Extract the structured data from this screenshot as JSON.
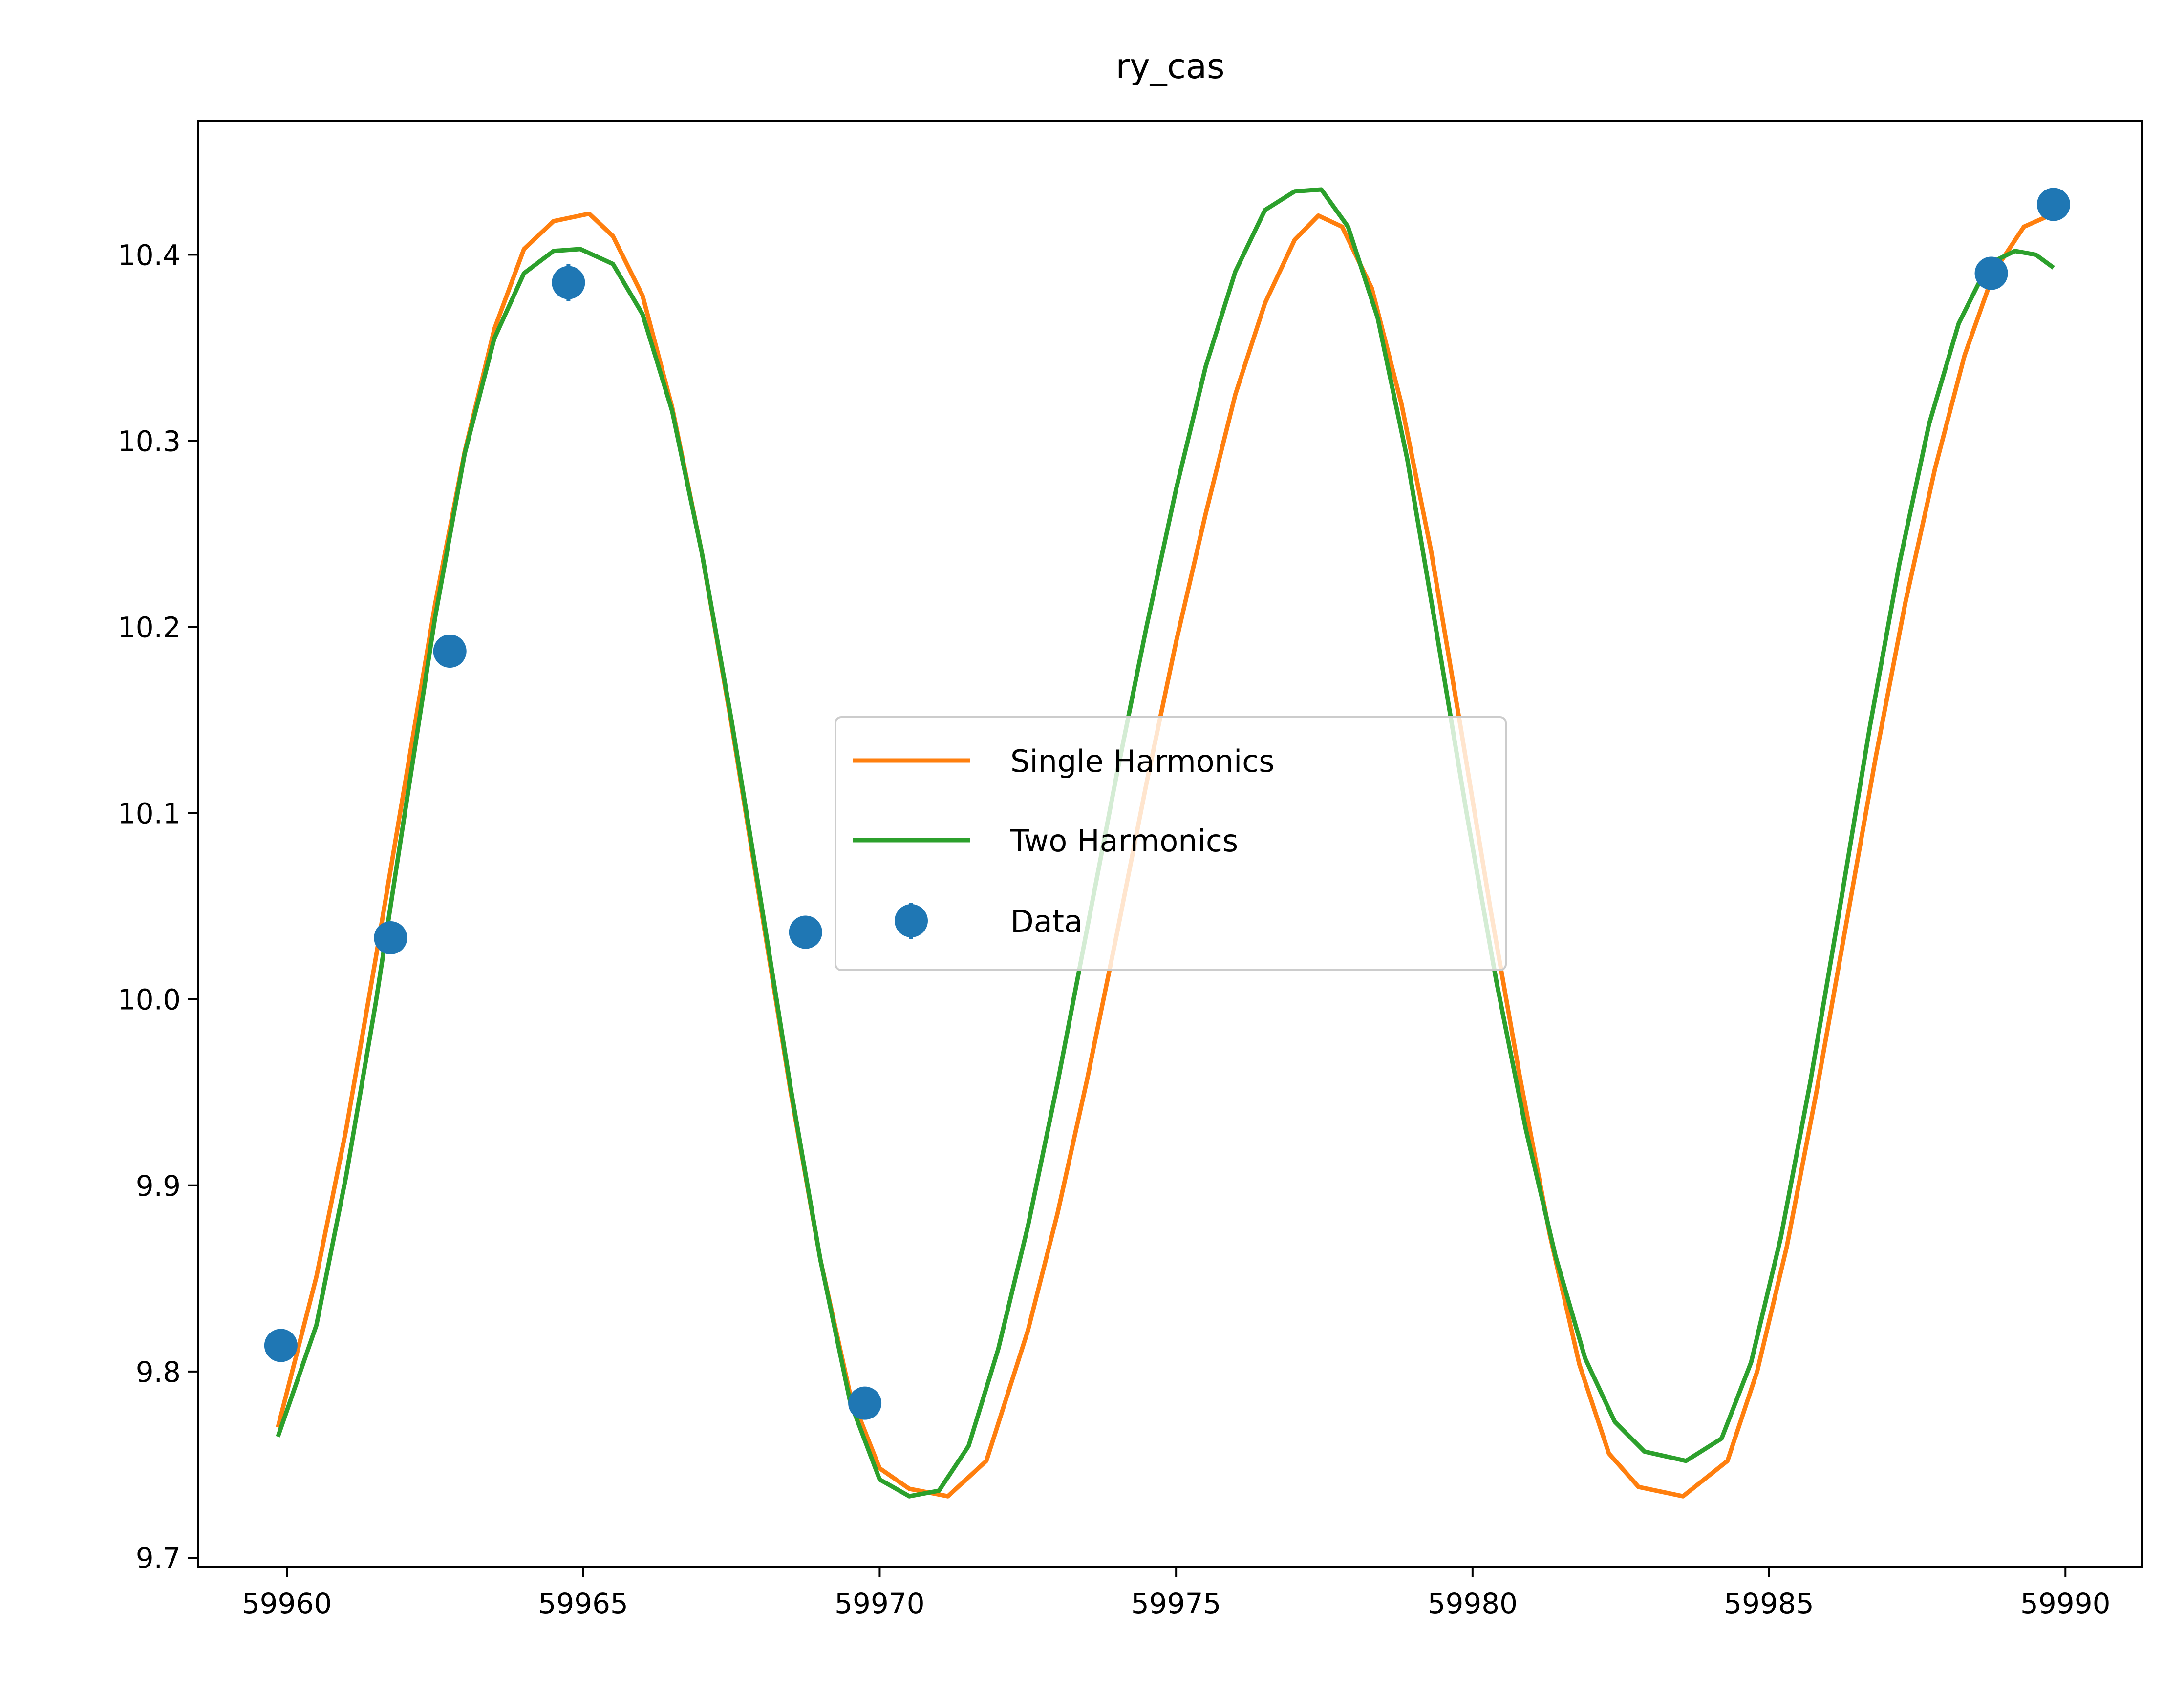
{
  "colors": {
    "single": "#ff7f0e",
    "two": "#2ca02c",
    "data": "#1f77b4"
  },
  "chart_data": {
    "type": "line",
    "title": "ry_cas",
    "xlabel": "",
    "ylabel": "",
    "xlim": [
      59958.5,
      59991.3
    ],
    "ylim": [
      9.695,
      10.472
    ],
    "xticks": [
      59960,
      59965,
      59970,
      59975,
      59980,
      59985,
      59990
    ],
    "yticks": [
      9.7,
      9.8,
      9.9,
      10.0,
      10.1,
      10.2,
      10.3,
      10.4
    ],
    "xtick_labels": [
      "59960",
      "59965",
      "59970",
      "59975",
      "59980",
      "59985",
      "59990"
    ],
    "ytick_labels": [
      "9.7",
      "9.8",
      "9.9",
      "10.0",
      "10.1",
      "10.2",
      "10.3",
      "10.4"
    ],
    "grid": false,
    "legend_position": "center",
    "series": [
      {
        "name": "Single Harmonics",
        "kind": "line",
        "color": "#ff7f0e",
        "x": [
          59959.85,
          59960.5,
          59961.0,
          59961.5,
          59962.0,
          59962.5,
          59963.0,
          59963.5,
          59964.0,
          59964.5,
          59965.1,
          59965.5,
          59966.0,
          59966.5,
          59967.0,
          59967.5,
          59968.0,
          59968.5,
          59969.0,
          59969.5,
          59970.0,
          59970.5,
          59971.15,
          59971.8,
          59972.5,
          59973.0,
          59973.5,
          59974.0,
          59974.5,
          59975.0,
          59975.5,
          59976.0,
          59976.5,
          59977.0,
          59977.4,
          59977.8,
          59978.3,
          59978.8,
          59979.3,
          59979.8,
          59980.3,
          59980.8,
          59981.3,
          59981.8,
          59982.3,
          59982.8,
          59983.55,
          59984.3,
          59984.8,
          59985.3,
          59985.8,
          59986.3,
          59986.8,
          59987.3,
          59987.8,
          59988.3,
          59988.8,
          59989.3,
          59989.8
        ],
        "y": [
          9.77,
          9.851,
          9.93,
          10.022,
          10.117,
          10.212,
          10.294,
          10.36,
          10.403,
          10.418,
          10.422,
          10.41,
          10.378,
          10.318,
          10.24,
          10.148,
          10.049,
          9.95,
          9.86,
          9.788,
          9.748,
          9.737,
          9.733,
          9.752,
          9.822,
          9.885,
          9.957,
          10.035,
          10.116,
          10.192,
          10.261,
          10.325,
          10.374,
          10.408,
          10.421,
          10.415,
          10.382,
          10.32,
          10.241,
          10.146,
          10.049,
          9.958,
          9.874,
          9.804,
          9.756,
          9.738,
          9.733,
          9.752,
          9.8,
          9.867,
          9.95,
          10.04,
          10.13,
          10.213,
          10.285,
          10.346,
          10.391,
          10.415,
          10.422
        ]
      },
      {
        "name": "Two Harmonics",
        "kind": "line",
        "color": "#2ca02c",
        "x": [
          59959.85,
          59960.5,
          59961.0,
          59961.5,
          59962.0,
          59962.5,
          59963.0,
          59963.5,
          59964.0,
          59964.5,
          59964.95,
          59965.5,
          59966.0,
          59966.5,
          59967.0,
          59967.5,
          59968.0,
          59968.5,
          59969.0,
          59969.5,
          59970.0,
          59970.5,
          59971.0,
          59971.5,
          59972.0,
          59972.5,
          59973.0,
          59973.5,
          59974.0,
          59974.5,
          59975.0,
          59975.5,
          59976.0,
          59976.5,
          59977.0,
          59977.45,
          59977.9,
          59978.4,
          59978.9,
          59979.4,
          59979.9,
          59980.4,
          59980.9,
          59981.4,
          59981.9,
          59982.4,
          59982.9,
          59983.6,
          59984.2,
          59984.7,
          59985.2,
          59985.7,
          59986.2,
          59986.7,
          59987.2,
          59987.7,
          59988.2,
          59988.7,
          59989.15,
          59989.5,
          59989.8
        ],
        "y": [
          9.765,
          9.825,
          9.905,
          9.998,
          10.102,
          10.205,
          10.293,
          10.355,
          10.39,
          10.402,
          10.403,
          10.395,
          10.368,
          10.316,
          10.24,
          10.15,
          10.052,
          9.952,
          9.86,
          9.784,
          9.742,
          9.733,
          9.736,
          9.76,
          9.812,
          9.878,
          9.955,
          10.038,
          10.121,
          10.2,
          10.274,
          10.34,
          10.391,
          10.424,
          10.434,
          10.435,
          10.415,
          10.366,
          10.29,
          10.196,
          10.1,
          10.01,
          9.93,
          9.862,
          9.807,
          9.773,
          9.757,
          9.752,
          9.764,
          9.805,
          9.872,
          9.956,
          10.05,
          10.146,
          10.234,
          10.309,
          10.363,
          10.395,
          10.402,
          10.4,
          10.393
        ]
      },
      {
        "name": "Data",
        "kind": "errorbar",
        "color": "#1f77b4",
        "x": [
          59959.9,
          59961.75,
          59962.75,
          59964.75,
          59968.75,
          59969.75,
          59988.75,
          59989.8
        ],
        "y": [
          9.814,
          10.033,
          10.187,
          10.385,
          10.036,
          9.783,
          10.39,
          10.427
        ],
        "yerr": [
          0.004,
          0.004,
          0.004,
          0.01,
          0.004,
          0.004,
          0.004,
          0.004
        ]
      }
    ]
  }
}
